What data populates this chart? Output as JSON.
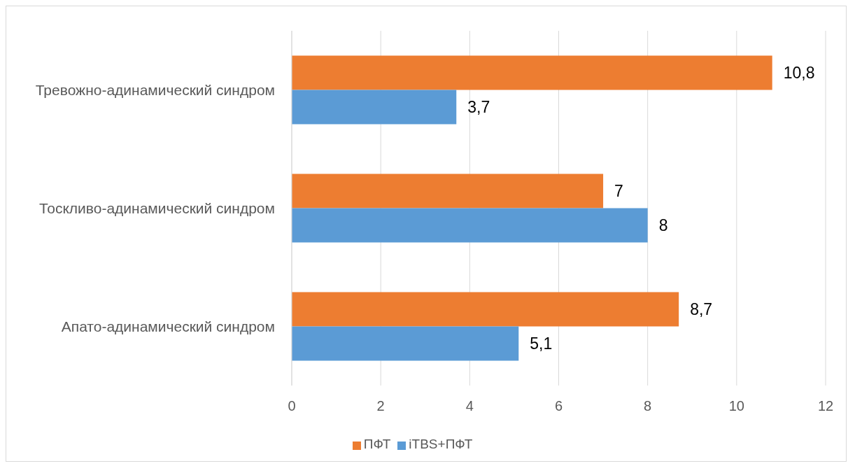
{
  "chart_data": {
    "type": "bar",
    "orientation": "horizontal",
    "categories": [
      "Тревожно-адинамический синдром",
      "Тоскливо-адинамический синдром",
      "Апато-адинамический синдром"
    ],
    "series": [
      {
        "name": "ПФТ",
        "color": "#ed7d31",
        "values": [
          10.8,
          7,
          8.7
        ],
        "value_labels": [
          "10,8",
          "7",
          "8,7"
        ]
      },
      {
        "name": "iTBS+ПФТ",
        "color": "#5b9bd5",
        "values": [
          3.7,
          8,
          5.1
        ],
        "value_labels": [
          "3,7",
          "8",
          "5,1"
        ]
      }
    ],
    "xlim": [
      0,
      12
    ],
    "xticks": [
      0,
      2,
      4,
      6,
      8,
      10,
      12
    ],
    "grid": "x",
    "legend": "bottom"
  }
}
